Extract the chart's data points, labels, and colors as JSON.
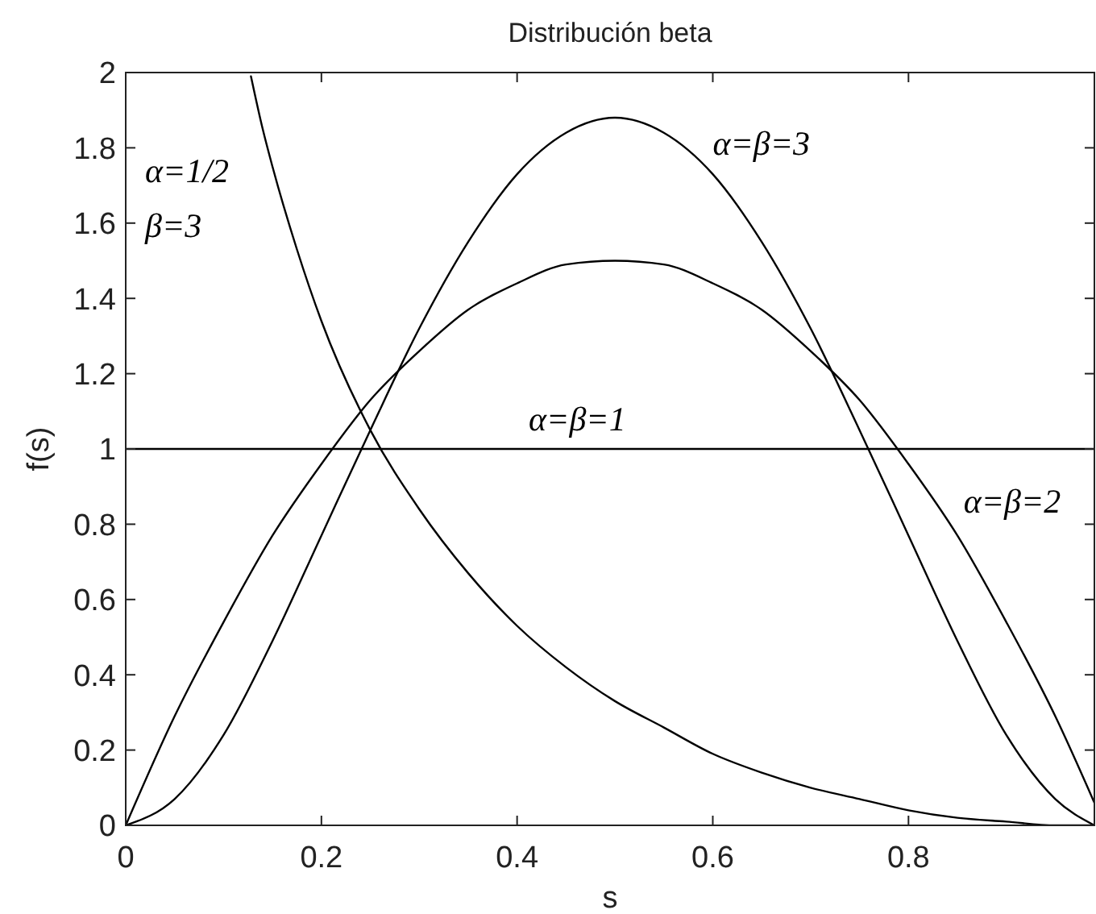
{
  "chart_data": {
    "type": "line",
    "title": "Distribución beta",
    "xlabel": "s",
    "ylabel": "f(s)",
    "xlim": [
      0,
      0.99
    ],
    "ylim": [
      0,
      2
    ],
    "xticks": [
      0,
      0.2,
      0.4,
      0.6,
      0.8
    ],
    "yticks": [
      0,
      0.2,
      0.4,
      0.6,
      0.8,
      1,
      1.2,
      1.4,
      1.6,
      1.8,
      2
    ],
    "line_style": "solid",
    "series": [
      {
        "name": "α=1/2 β=3",
        "color": "#000000",
        "x": [
          0.128,
          0.14,
          0.15,
          0.175,
          0.2,
          0.25,
          0.3,
          0.35,
          0.4,
          0.45,
          0.5,
          0.55,
          0.6,
          0.65,
          0.7,
          0.75,
          0.8,
          0.85,
          0.9,
          0.95,
          0.99
        ],
        "values": [
          1.99,
          1.85,
          1.75,
          1.53,
          1.34,
          1.05,
          0.84,
          0.67,
          0.53,
          0.42,
          0.33,
          0.26,
          0.19,
          0.14,
          0.1,
          0.07,
          0.04,
          0.02,
          0.01,
          0,
          0
        ]
      },
      {
        "name": "α=β=3",
        "color": "#000000",
        "x": [
          0,
          0.05,
          0.1,
          0.15,
          0.2,
          0.25,
          0.3,
          0.35,
          0.4,
          0.45,
          0.5,
          0.55,
          0.6,
          0.65,
          0.7,
          0.75,
          0.8,
          0.85,
          0.9,
          0.95,
          0.99
        ],
        "values": [
          0,
          0.07,
          0.24,
          0.49,
          0.77,
          1.05,
          1.32,
          1.55,
          1.73,
          1.84,
          1.88,
          1.84,
          1.73,
          1.55,
          1.32,
          1.05,
          0.77,
          0.49,
          0.24,
          0.07,
          0
        ]
      },
      {
        "name": "α=β=1",
        "color": "#000000",
        "x": [
          0,
          0.99
        ],
        "values": [
          1,
          1
        ]
      },
      {
        "name": "α=β=2",
        "color": "#000000",
        "x": [
          0,
          0.05,
          0.1,
          0.15,
          0.2,
          0.25,
          0.3,
          0.35,
          0.4,
          0.45,
          0.5,
          0.55,
          0.6,
          0.65,
          0.7,
          0.75,
          0.8,
          0.85,
          0.9,
          0.95,
          0.99
        ],
        "values": [
          0,
          0.29,
          0.54,
          0.77,
          0.96,
          1.13,
          1.26,
          1.37,
          1.44,
          1.49,
          1.5,
          1.49,
          1.44,
          1.37,
          1.26,
          1.13,
          0.96,
          0.77,
          0.54,
          0.29,
          0.06
        ]
      }
    ]
  }
}
